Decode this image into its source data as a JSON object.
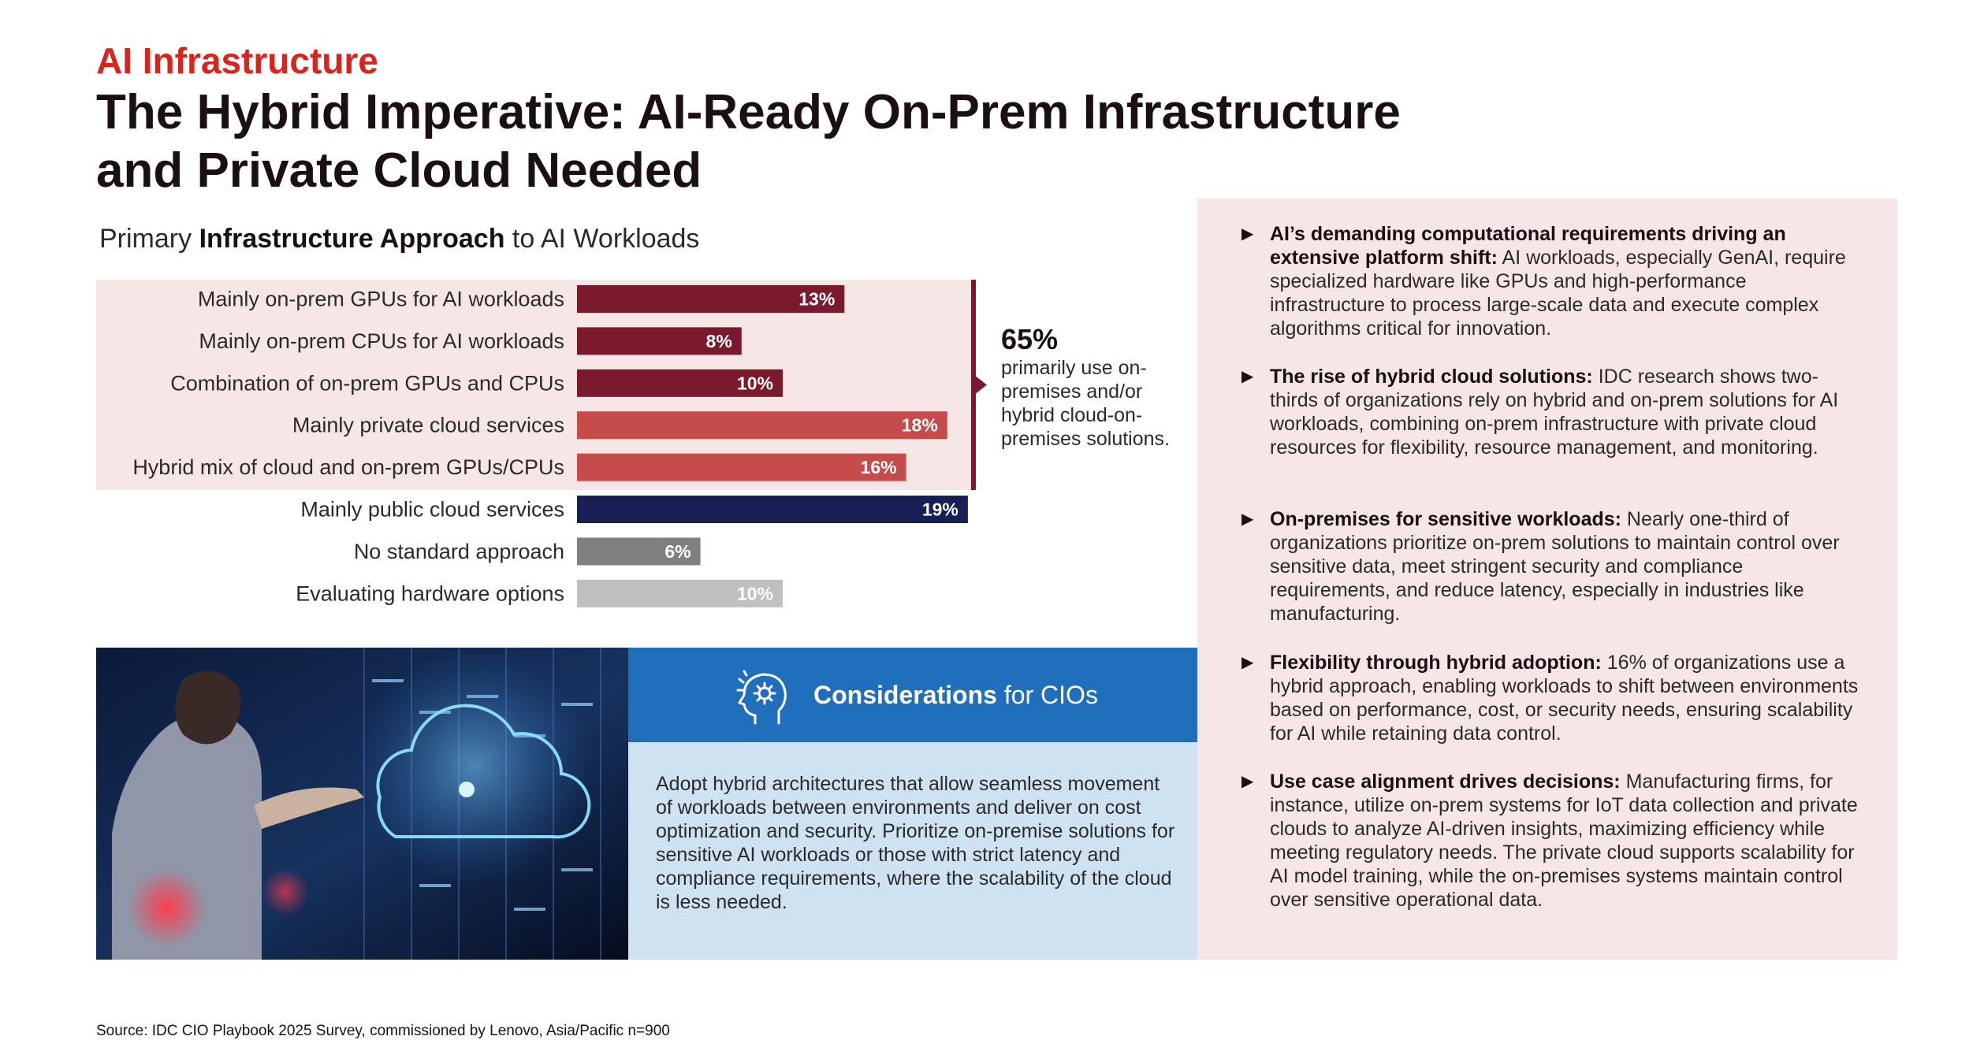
{
  "header": {
    "kicker": "AI Infrastructure",
    "title": "The Hybrid Imperative: AI-Ready On-Prem Infrastructure and Private Cloud Needed"
  },
  "chart_title": {
    "prefix": "Primary ",
    "bold": "Infrastructure Approach",
    "suffix": " to AI Workloads"
  },
  "chart_data": {
    "type": "bar",
    "orientation": "horizontal",
    "title": "Primary Infrastructure Approach to AI Workloads",
    "categories": [
      "Mainly on-prem GPUs for AI workloads",
      "Mainly on-prem CPUs for AI workloads",
      "Combination of on-prem GPUs and CPUs",
      "Mainly private cloud services",
      "Hybrid mix of cloud and on-prem GPUs/CPUs",
      "Mainly public cloud services",
      "No standard approach",
      "Evaluating hardware options"
    ],
    "values": [
      13,
      8,
      10,
      18,
      16,
      19,
      6,
      10
    ],
    "value_labels": [
      "13%",
      "8%",
      "10%",
      "18%",
      "16%",
      "19%",
      "6%",
      "10%"
    ],
    "colors": [
      "#7b1a2c",
      "#7b1a2c",
      "#7b1a2c",
      "#c64c4c",
      "#c64c4c",
      "#181f55",
      "#808080",
      "#c0c0c0"
    ],
    "unit": "%",
    "xlim": [
      0,
      20
    ],
    "highlight_categories": 5,
    "highlight_color": "#f6e6e6",
    "bracket_color": "#7b1a2c"
  },
  "callout": {
    "pct": "65%",
    "text": "primarily use on-premises and/or hybrid cloud-on-premises solutions."
  },
  "considerations": {
    "title_bold": "Considerations",
    "title_rest": " for CIOs",
    "body": "Adopt hybrid architectures that allow seamless movement of workloads between environments and deliver on cost optimization and security. Prioritize on-premise solutions for sensitive AI workloads or those with strict latency and compliance requirements, where the scalability of the cloud is less needed."
  },
  "bullets": [
    {
      "bold": "AI’s demanding computational requirements driving an extensive platform shift:",
      "text": " AI workloads, especially GenAI, require specialized hardware like GPUs and high-performance infrastructure to process large-scale data and execute complex algorithms critical for innovation."
    },
    {
      "bold": "The rise of hybrid cloud solutions:",
      "text": " IDC research shows two-thirds of organizations rely on hybrid and on-prem solutions for AI workloads, combining on-prem infrastructure with private cloud resources for flexibility, resource management, and monitoring."
    },
    {
      "bold": "On-premises for sensitive workloads:",
      "text": " Nearly one-third of organizations prioritize on-prem solutions to maintain control over sensitive data, meet stringent security and compliance requirements, and reduce latency, especially in industries like manufacturing."
    },
    {
      "bold": "Flexibility through hybrid adoption:",
      "text": " 16% of organizations use a hybrid approach, enabling workloads to shift between environments based on performance, cost, or security needs, ensuring scalability for AI while retaining data control."
    },
    {
      "bold": "Use case alignment drives decisions:",
      "text": " Manufacturing firms, for instance, utilize on-prem systems for IoT data collection and private clouds to analyze AI-driven insights, maximizing efficiency while meeting regulatory needs. The private cloud supports scalability for AI model training, while the on-premises systems maintain control over sensitive operational data."
    }
  ],
  "source": "Source: IDC CIO Playbook 2025 Survey, commissioned by Lenovo, Asia/Pacific n=900"
}
